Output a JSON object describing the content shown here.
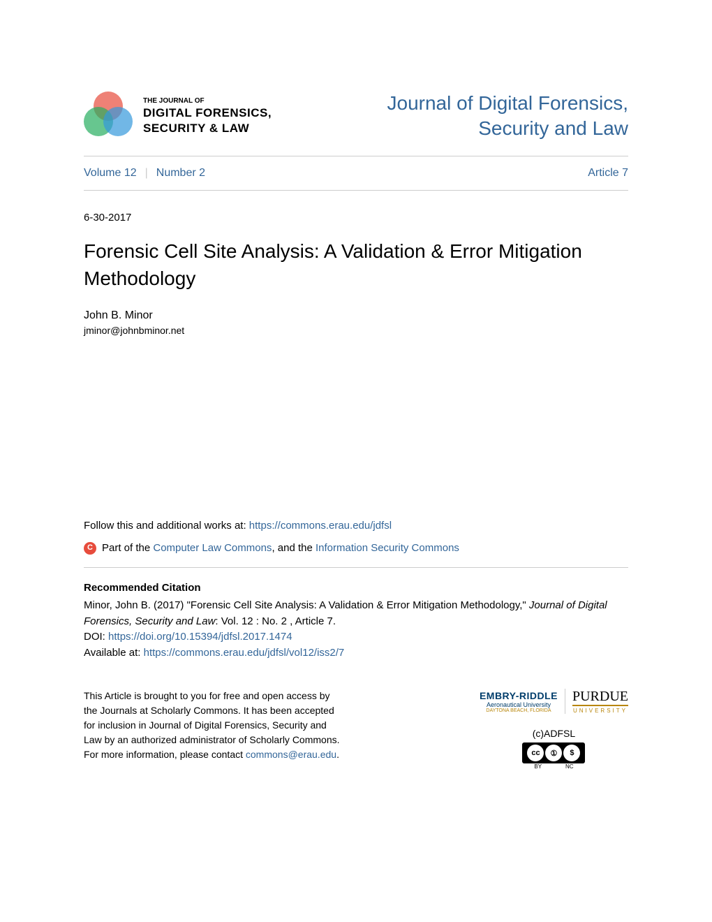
{
  "header": {
    "logo_small_text": "THE JOURNAL OF",
    "logo_line1": "DIGITAL FORENSICS,",
    "logo_line2": "SECURITY & LAW",
    "journal_name_line1": "Journal of Digital Forensics,",
    "journal_name_line2": "Security and Law"
  },
  "volume_info": {
    "volume": "Volume 12",
    "number": "Number 2",
    "article": "Article 7"
  },
  "article": {
    "date": "6-30-2017",
    "title": "Forensic Cell Site Analysis: A Validation & Error Mitigation Methodology",
    "author_name": "John B. Minor",
    "author_email": "jminor@johnbminor.net"
  },
  "links": {
    "follow_prefix": "Follow this and additional works at: ",
    "follow_url": "https://commons.erau.edu/jdfsl",
    "part_of_prefix": "Part of the ",
    "commons1": "Computer Law Commons",
    "and_text": ", and the ",
    "commons2": "Information Security Commons"
  },
  "citation": {
    "heading": "Recommended Citation",
    "text_part1": "Minor, John B. (2017) \"Forensic Cell Site Analysis: A Validation & Error Mitigation Methodology,\" ",
    "journal_italic": "Journal of Digital Forensics, Security and Law",
    "text_part2": ": Vol. 12 : No. 2 , Article 7.",
    "doi_label": "DOI: ",
    "doi_url": "https://doi.org/10.15394/jdfsl.2017.1474",
    "available_label": "Available at: ",
    "available_url": "https://commons.erau.edu/jdfsl/vol12/iss2/7"
  },
  "footer": {
    "text_part1": "This Article is brought to you for free and open access by the Journals at Scholarly Commons. It has been accepted for inclusion in Journal of Digital Forensics, Security and Law by an authorized administrator of Scholarly Commons. For more information, please contact ",
    "contact_email": "commons@erau.edu",
    "text_part2": ".",
    "embry_name": "EMBRY-RIDDLE",
    "embry_sub": "Aeronautical University",
    "embry_location": "DAYTONA BEACH, FLORIDA",
    "purdue_name": "PURDUE",
    "purdue_sub": "UNIVERSITY",
    "copyright": "(c)ADFSL",
    "cc_by": "BY",
    "cc_nc": "NC"
  },
  "colors": {
    "link_color": "#336699",
    "text_color": "#000000",
    "divider_color": "#cccccc",
    "background_color": "#ffffff"
  }
}
